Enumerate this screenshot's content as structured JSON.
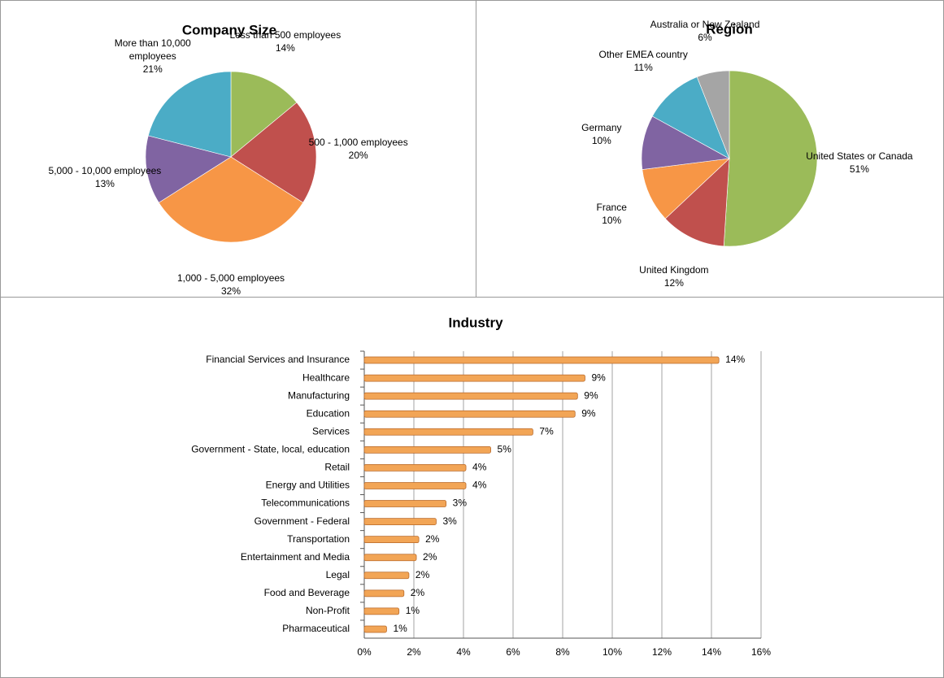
{
  "chart_data": [
    {
      "type": "pie",
      "title": "Company Size",
      "categories": [
        "Less than 500 employees",
        "500 - 1,000 employees",
        "1,000 - 5,000 employees",
        "5,000 - 10,000 employees",
        "More than 10,000 employees"
      ],
      "values": [
        14,
        20,
        32,
        13,
        21
      ],
      "value_labels": [
        "14%",
        "20%",
        "32%",
        "13%",
        "21%"
      ],
      "colors": [
        "#9bbb59",
        "#c0504d",
        "#f79646",
        "#8064a2",
        "#4bacc6"
      ]
    },
    {
      "type": "pie",
      "title": "Region",
      "categories": [
        "United States or Canada",
        "United Kingdom",
        "France",
        "Germany",
        "Other EMEA country",
        "Australia or New Zealand"
      ],
      "values": [
        51,
        12,
        10,
        10,
        11,
        6
      ],
      "value_labels": [
        "51%",
        "12%",
        "10%",
        "10%",
        "11%",
        "6%"
      ],
      "colors": [
        "#9bbb59",
        "#c0504d",
        "#f79646",
        "#8064a2",
        "#4bacc6",
        "#a5a5a5"
      ]
    },
    {
      "type": "hbar",
      "title": "Industry",
      "categories": [
        "Financial Services and Insurance",
        "Healthcare",
        "Manufacturing",
        "Education",
        "Services",
        "Government - State, local, education",
        "Retail",
        "Energy and Utilities",
        "Telecommunications",
        "Government - Federal",
        "Transportation",
        "Entertainment and Media",
        "Legal",
        "Food and Beverage",
        "Non-Profit",
        "Pharmaceutical"
      ],
      "values": [
        14.3,
        8.9,
        8.6,
        8.5,
        6.8,
        5.1,
        4.1,
        4.1,
        3.3,
        2.9,
        2.2,
        2.1,
        1.8,
        1.6,
        1.4,
        0.9
      ],
      "value_labels": [
        "14%",
        "9%",
        "9%",
        "9%",
        "7%",
        "5%",
        "4%",
        "4%",
        "3%",
        "3%",
        "2%",
        "2%",
        "2%",
        "2%",
        "1%",
        "1%"
      ],
      "color": "#f2a556",
      "xlim": [
        0,
        16
      ],
      "xticks": [
        {
          "value": 0,
          "label": "0%"
        },
        {
          "value": 2,
          "label": "2%"
        },
        {
          "value": 4,
          "label": "4%"
        },
        {
          "value": 6,
          "label": "6%"
        },
        {
          "value": 8,
          "label": "8%"
        },
        {
          "value": 10,
          "label": "10%"
        },
        {
          "value": 12,
          "label": "12%"
        },
        {
          "value": 14,
          "label": "14%"
        },
        {
          "value": 16,
          "label": "16%"
        }
      ],
      "grid": true
    }
  ]
}
